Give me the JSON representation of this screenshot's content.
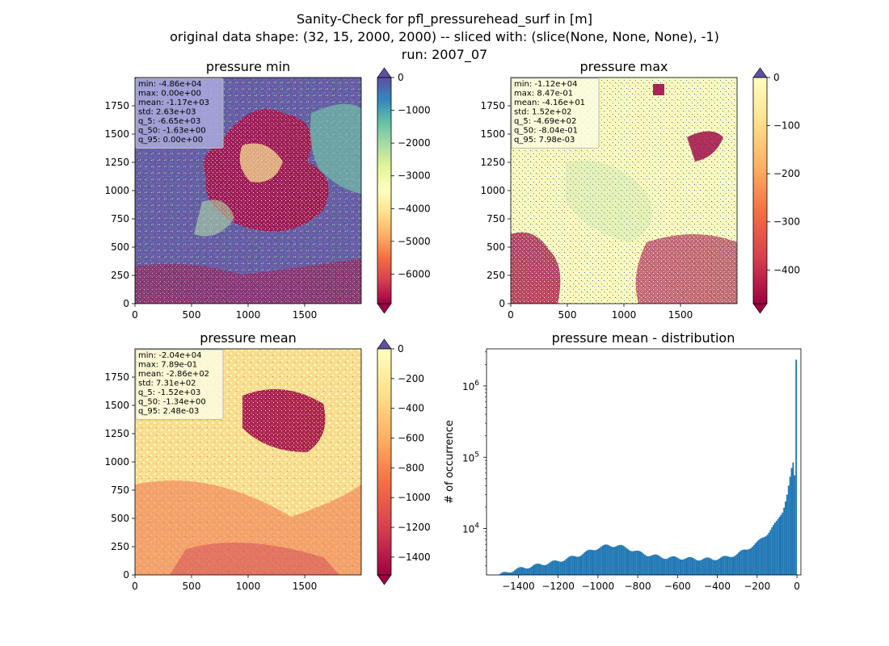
{
  "figure": {
    "title_lines": [
      "Sanity-Check for pfl_pressurehead_surf in [m]",
      "original data shape: (32, 15, 2000, 2000) -- sliced with: (slice(None, None, None), -1)",
      "run: 2007_07"
    ]
  },
  "chart_data": [
    {
      "type": "heatmap",
      "title": "pressure min",
      "colormap": "Spectral",
      "xlim": [
        0,
        2000
      ],
      "ylim": [
        0,
        2000
      ],
      "xticks": [
        "0",
        "500",
        "1000",
        "1500"
      ],
      "yticks": [
        "0",
        "250",
        "500",
        "750",
        "1000",
        "1250",
        "1500",
        "1750"
      ],
      "colorbar": {
        "range": [
          -6900,
          0
        ],
        "ticks": [
          "0",
          "−1000",
          "−2000",
          "−3000",
          "−4000",
          "−5000",
          "−6000"
        ],
        "tick_values": [
          0,
          -1000,
          -2000,
          -3000,
          -4000,
          -5000,
          -6000
        ],
        "extend": "both"
      },
      "stats": [
        "min: -4.86e+04",
        "max: 0.00e+00",
        "mean: -1.17e+03",
        "std: 2.63e+03",
        "q_5: -6.65e+03",
        "q_50: -1.63e+00",
        "q_95: 0.00e+00"
      ],
      "stats_box_color": "#aaaadd"
    },
    {
      "type": "heatmap",
      "title": "pressure max",
      "colormap": "Spectral",
      "xlim": [
        0,
        2000
      ],
      "ylim": [
        0,
        2000
      ],
      "xticks": [
        "0",
        "500",
        "1000",
        "1500"
      ],
      "yticks": [
        "0",
        "250",
        "500",
        "750",
        "1000",
        "1250",
        "1500",
        "1750"
      ],
      "colorbar": {
        "range": [
          -470,
          0
        ],
        "ticks": [
          "0",
          "−100",
          "−200",
          "−300",
          "−400"
        ],
        "tick_values": [
          0,
          -100,
          -200,
          -300,
          -400
        ],
        "extend": "both"
      },
      "stats": [
        "min: -1.12e+04",
        "max: 8.47e-01",
        "mean: -4.16e+01",
        "std: 1.52e+02",
        "q_5: -4.69e+02",
        "q_50: -8.04e-01",
        "q_95: 7.98e-03"
      ],
      "stats_box_color": "#fbfbe0"
    },
    {
      "type": "heatmap",
      "title": "pressure mean",
      "colormap": "Spectral",
      "xlim": [
        0,
        2000
      ],
      "ylim": [
        0,
        2000
      ],
      "xticks": [
        "0",
        "500",
        "1000",
        "1500"
      ],
      "yticks": [
        "0",
        "250",
        "500",
        "750",
        "1000",
        "1250",
        "1500",
        "1750"
      ],
      "colorbar": {
        "range": [
          -1520,
          0
        ],
        "ticks": [
          "0",
          "−200",
          "−400",
          "−600",
          "−800",
          "−1000",
          "−1200",
          "−1400"
        ],
        "tick_values": [
          0,
          -200,
          -400,
          -600,
          -800,
          -1000,
          -1200,
          -1400
        ],
        "extend": "both"
      },
      "stats": [
        "min: -2.04e+04",
        "max: 7.89e-01",
        "mean: -2.86e+02",
        "std: 7.31e+02",
        "q_5: -1.52e+03",
        "q_50: -1.34e+00",
        "q_95: 2.48e-03"
      ],
      "stats_box_color": "#fbfbe0"
    },
    {
      "type": "bar",
      "title": "pressure mean - distribution",
      "ylabel": "# of occurrence",
      "yscale": "log",
      "xlim": [
        -1560,
        20
      ],
      "ylim_exponent": [
        3.35,
        6.52
      ],
      "xticks": [
        "−1400",
        "−1200",
        "−1000",
        "−800",
        "−600",
        "−400",
        "−200",
        "0"
      ],
      "xtick_values": [
        -1400,
        -1200,
        -1000,
        -800,
        -600,
        -400,
        -200,
        0
      ],
      "yticks": [
        {
          "base": "10",
          "exp": "4",
          "value_exp": 4
        },
        {
          "base": "10",
          "exp": "5",
          "value_exp": 5
        },
        {
          "base": "10",
          "exp": "6",
          "value_exp": 6
        }
      ],
      "bar_color": "#1f77b4",
      "bin_range": [
        -1520,
        0
      ],
      "bin_width": 7.6,
      "profile": [
        [
          -1520,
          2100
        ],
        [
          -1450,
          2500
        ],
        [
          -1380,
          2800
        ],
        [
          -1300,
          3100
        ],
        [
          -1200,
          3500
        ],
        [
          -1100,
          4200
        ],
        [
          -1000,
          5400
        ],
        [
          -950,
          5800
        ],
        [
          -900,
          5800
        ],
        [
          -850,
          5300
        ],
        [
          -800,
          4700
        ],
        [
          -750,
          4300
        ],
        [
          -700,
          4100
        ],
        [
          -650,
          3900
        ],
        [
          -600,
          3900
        ],
        [
          -500,
          3750
        ],
        [
          -420,
          3750
        ],
        [
          -350,
          4000
        ],
        [
          -300,
          4400
        ],
        [
          -250,
          5200
        ],
        [
          -200,
          6300
        ],
        [
          -150,
          8500
        ],
        [
          -100,
          12500
        ],
        [
          -70,
          18000
        ],
        [
          -50,
          30000
        ],
        [
          -30,
          60000
        ],
        [
          -20,
          85000
        ],
        [
          -10,
          50000
        ],
        [
          -5,
          40000
        ],
        [
          0,
          2300000
        ]
      ]
    }
  ]
}
